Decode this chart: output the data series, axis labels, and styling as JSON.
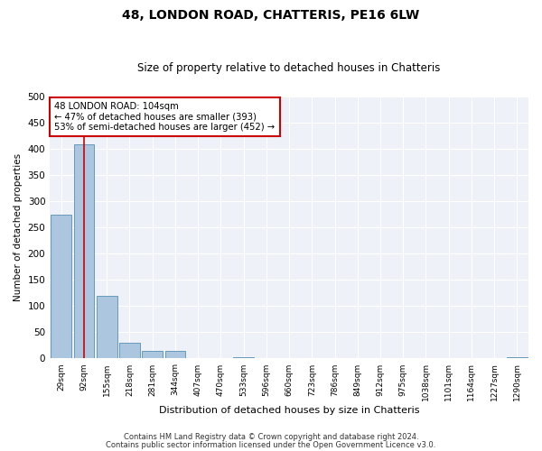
{
  "title": "48, LONDON ROAD, CHATTERIS, PE16 6LW",
  "subtitle": "Size of property relative to detached houses in Chatteris",
  "xlabel": "Distribution of detached houses by size in Chatteris",
  "ylabel": "Number of detached properties",
  "categories": [
    "29sqm",
    "92sqm",
    "155sqm",
    "218sqm",
    "281sqm",
    "344sqm",
    "407sqm",
    "470sqm",
    "533sqm",
    "596sqm",
    "660sqm",
    "723sqm",
    "786sqm",
    "849sqm",
    "912sqm",
    "975sqm",
    "1038sqm",
    "1101sqm",
    "1164sqm",
    "1227sqm",
    "1290sqm"
  ],
  "values": [
    275,
    408,
    120,
    30,
    15,
    15,
    1,
    0,
    3,
    0,
    0,
    0,
    0,
    0,
    0,
    0,
    0,
    0,
    0,
    0,
    2
  ],
  "bar_color": "#adc6e0",
  "bar_edge_color": "#6699bb",
  "highlight_line_color": "#cc0000",
  "annotation_box_color": "#cc0000",
  "ylim": [
    0,
    500
  ],
  "yticks": [
    0,
    50,
    100,
    150,
    200,
    250,
    300,
    350,
    400,
    450,
    500
  ],
  "bg_color": "#eef2f8",
  "footnote1": "Contains HM Land Registry data © Crown copyright and database right 2024.",
  "footnote2": "Contains public sector information licensed under the Open Government Licence v3.0.",
  "annotation_title": "48 LONDON ROAD: 104sqm",
  "annotation_line1": "← 47% of detached houses are smaller (393)",
  "annotation_line2": "53% of semi-detached houses are larger (452) →"
}
